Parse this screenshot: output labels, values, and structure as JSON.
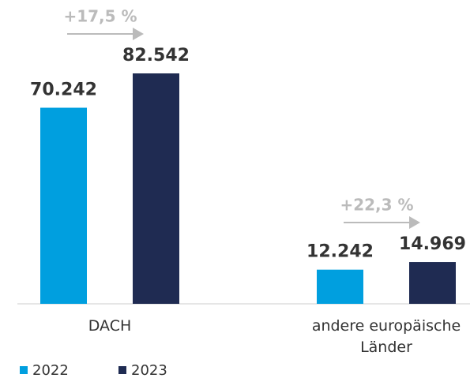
{
  "chart_data": {
    "type": "bar",
    "categories": [
      "DACH",
      "andere europäische Länder"
    ],
    "series": [
      {
        "name": "2022",
        "color": "#009fdf",
        "values": [
          70242,
          12242
        ],
        "value_labels": [
          "70.242",
          "12.242"
        ]
      },
      {
        "name": "2023",
        "color": "#1f2b52",
        "values": [
          82542,
          14969
        ],
        "value_labels": [
          "82.542",
          "14.969"
        ]
      }
    ],
    "annotations": [
      "+17,5 %",
      "+22,3 %"
    ]
  }
}
